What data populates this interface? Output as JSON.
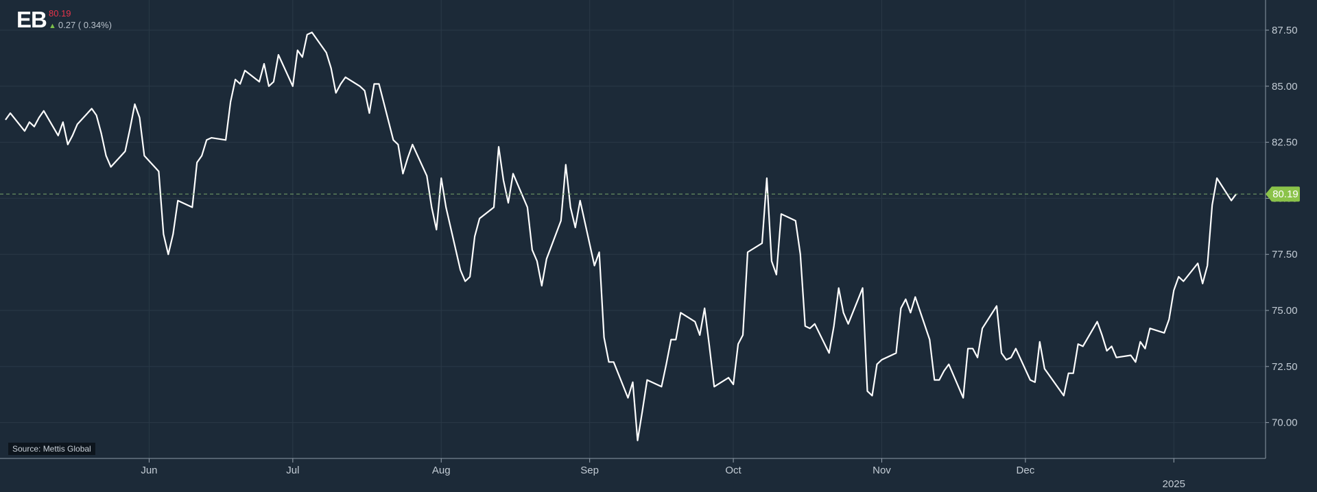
{
  "header": {
    "ticker": "EB",
    "price": "80.19",
    "change": "0.27 ( 0.34%)",
    "change_direction": "up"
  },
  "source_label": "Source: Mettis Global",
  "colors": {
    "background": "#1c2a38",
    "line": "#ffffff",
    "price_badge": "#8bc34a",
    "price_text_negative": "#e8344a",
    "change_up": "#7cbf4a"
  },
  "chart_data": {
    "type": "line",
    "title": "",
    "xlabel": "",
    "ylabel": "",
    "ylim": [
      68.4,
      88.6
    ],
    "yticks": [
      "70.00",
      "72.50",
      "75.00",
      "77.50",
      "80.00",
      "82.50",
      "85.00",
      "87.50"
    ],
    "x_tick_labels": [
      {
        "label": "Jun",
        "date": "2024-06-01"
      },
      {
        "label": "Jul",
        "date": "2024-07-01"
      },
      {
        "label": "Aug",
        "date": "2024-08-01"
      },
      {
        "label": "Sep",
        "date": "2024-09-01"
      },
      {
        "label": "Oct",
        "date": "2024-10-01"
      },
      {
        "label": "Nov",
        "date": "2024-11-01"
      },
      {
        "label": "Dec",
        "date": "2024-12-01"
      },
      {
        "label": "2025",
        "date": "2025-01-01"
      }
    ],
    "xlim": [
      "2024-05-02",
      "2025-01-17"
    ],
    "last_price": 80.19,
    "grid": true,
    "series": [
      {
        "values": [
          [
            "2024-05-02",
            83.5
          ],
          [
            "2024-05-03",
            83.8
          ],
          [
            "2024-05-06",
            83.0
          ],
          [
            "2024-05-07",
            83.4
          ],
          [
            "2024-05-08",
            83.2
          ],
          [
            "2024-05-09",
            83.6
          ],
          [
            "2024-05-10",
            83.9
          ],
          [
            "2024-05-13",
            82.8
          ],
          [
            "2024-05-14",
            83.4
          ],
          [
            "2024-05-15",
            82.4
          ],
          [
            "2024-05-16",
            82.8
          ],
          [
            "2024-05-17",
            83.3
          ],
          [
            "2024-05-20",
            84.0
          ],
          [
            "2024-05-21",
            83.7
          ],
          [
            "2024-05-22",
            82.9
          ],
          [
            "2024-05-23",
            81.9
          ],
          [
            "2024-05-24",
            81.4
          ],
          [
            "2024-05-27",
            82.1
          ],
          [
            "2024-05-28",
            83.1
          ],
          [
            "2024-05-29",
            84.2
          ],
          [
            "2024-05-30",
            83.6
          ],
          [
            "2024-05-31",
            81.9
          ],
          [
            "2024-06-03",
            81.2
          ],
          [
            "2024-06-04",
            78.4
          ],
          [
            "2024-06-05",
            77.5
          ],
          [
            "2024-06-06",
            78.4
          ],
          [
            "2024-06-07",
            79.9
          ],
          [
            "2024-06-10",
            79.6
          ],
          [
            "2024-06-11",
            81.6
          ],
          [
            "2024-06-12",
            81.9
          ],
          [
            "2024-06-13",
            82.6
          ],
          [
            "2024-06-14",
            82.7
          ],
          [
            "2024-06-17",
            82.6
          ],
          [
            "2024-06-18",
            84.3
          ],
          [
            "2024-06-19",
            85.3
          ],
          [
            "2024-06-20",
            85.1
          ],
          [
            "2024-06-21",
            85.7
          ],
          [
            "2024-06-24",
            85.2
          ],
          [
            "2024-06-25",
            86.0
          ],
          [
            "2024-06-26",
            85.0
          ],
          [
            "2024-06-27",
            85.2
          ],
          [
            "2024-06-28",
            86.4
          ],
          [
            "2024-07-01",
            85.0
          ],
          [
            "2024-07-02",
            86.6
          ],
          [
            "2024-07-03",
            86.3
          ],
          [
            "2024-07-04",
            87.3
          ],
          [
            "2024-07-05",
            87.4
          ],
          [
            "2024-07-08",
            86.5
          ],
          [
            "2024-07-09",
            85.8
          ],
          [
            "2024-07-10",
            84.7
          ],
          [
            "2024-07-11",
            85.1
          ],
          [
            "2024-07-12",
            85.4
          ],
          [
            "2024-07-15",
            85.0
          ],
          [
            "2024-07-16",
            84.8
          ],
          [
            "2024-07-17",
            83.8
          ],
          [
            "2024-07-18",
            85.1
          ],
          [
            "2024-07-19",
            85.1
          ],
          [
            "2024-07-22",
            82.6
          ],
          [
            "2024-07-23",
            82.4
          ],
          [
            "2024-07-24",
            81.1
          ],
          [
            "2024-07-25",
            81.8
          ],
          [
            "2024-07-26",
            82.4
          ],
          [
            "2024-07-29",
            81.0
          ],
          [
            "2024-07-30",
            79.6
          ],
          [
            "2024-07-31",
            78.6
          ],
          [
            "2024-08-01",
            80.9
          ],
          [
            "2024-08-02",
            79.6
          ],
          [
            "2024-08-05",
            76.8
          ],
          [
            "2024-08-06",
            76.3
          ],
          [
            "2024-08-07",
            76.5
          ],
          [
            "2024-08-08",
            78.3
          ],
          [
            "2024-08-09",
            79.1
          ],
          [
            "2024-08-12",
            79.6
          ],
          [
            "2024-08-13",
            82.3
          ],
          [
            "2024-08-14",
            80.8
          ],
          [
            "2024-08-15",
            79.8
          ],
          [
            "2024-08-16",
            81.1
          ],
          [
            "2024-08-19",
            79.6
          ],
          [
            "2024-08-20",
            77.7
          ],
          [
            "2024-08-21",
            77.2
          ],
          [
            "2024-08-22",
            76.1
          ],
          [
            "2024-08-23",
            77.3
          ],
          [
            "2024-08-26",
            79.0
          ],
          [
            "2024-08-27",
            81.5
          ],
          [
            "2024-08-28",
            79.6
          ],
          [
            "2024-08-29",
            78.7
          ],
          [
            "2024-08-30",
            79.9
          ],
          [
            "2024-09-02",
            77.0
          ],
          [
            "2024-09-03",
            77.6
          ],
          [
            "2024-09-04",
            73.8
          ],
          [
            "2024-09-05",
            72.7
          ],
          [
            "2024-09-06",
            72.7
          ],
          [
            "2024-09-09",
            71.1
          ],
          [
            "2024-09-10",
            71.8
          ],
          [
            "2024-09-11",
            69.2
          ],
          [
            "2024-09-12",
            70.5
          ],
          [
            "2024-09-13",
            71.9
          ],
          [
            "2024-09-16",
            71.6
          ],
          [
            "2024-09-17",
            72.6
          ],
          [
            "2024-09-18",
            73.7
          ],
          [
            "2024-09-19",
            73.7
          ],
          [
            "2024-09-20",
            74.9
          ],
          [
            "2024-09-23",
            74.5
          ],
          [
            "2024-09-24",
            73.9
          ],
          [
            "2024-09-25",
            75.1
          ],
          [
            "2024-09-26",
            73.4
          ],
          [
            "2024-09-27",
            71.6
          ],
          [
            "2024-09-30",
            72.0
          ],
          [
            "2024-10-01",
            71.7
          ],
          [
            "2024-10-02",
            73.5
          ],
          [
            "2024-10-03",
            73.9
          ],
          [
            "2024-10-04",
            77.6
          ],
          [
            "2024-10-07",
            78.0
          ],
          [
            "2024-10-08",
            80.9
          ],
          [
            "2024-10-09",
            77.2
          ],
          [
            "2024-10-10",
            76.6
          ],
          [
            "2024-10-11",
            79.3
          ],
          [
            "2024-10-14",
            79.0
          ],
          [
            "2024-10-15",
            77.5
          ],
          [
            "2024-10-16",
            74.3
          ],
          [
            "2024-10-17",
            74.2
          ],
          [
            "2024-10-18",
            74.4
          ],
          [
            "2024-10-21",
            73.1
          ],
          [
            "2024-10-22",
            74.3
          ],
          [
            "2024-10-23",
            76.0
          ],
          [
            "2024-10-24",
            74.9
          ],
          [
            "2024-10-25",
            74.4
          ],
          [
            "2024-10-28",
            76.0
          ],
          [
            "2024-10-29",
            71.4
          ],
          [
            "2024-10-30",
            71.2
          ],
          [
            "2024-10-31",
            72.6
          ],
          [
            "2024-11-01",
            72.8
          ],
          [
            "2024-11-04",
            73.1
          ],
          [
            "2024-11-05",
            75.1
          ],
          [
            "2024-11-06",
            75.5
          ],
          [
            "2024-11-07",
            74.9
          ],
          [
            "2024-11-08",
            75.6
          ],
          [
            "2024-11-11",
            73.7
          ],
          [
            "2024-11-12",
            71.9
          ],
          [
            "2024-11-13",
            71.9
          ],
          [
            "2024-11-14",
            72.3
          ],
          [
            "2024-11-15",
            72.6
          ],
          [
            "2024-11-18",
            71.1
          ],
          [
            "2024-11-19",
            73.3
          ],
          [
            "2024-11-20",
            73.3
          ],
          [
            "2024-11-21",
            72.9
          ],
          [
            "2024-11-22",
            74.2
          ],
          [
            "2024-11-25",
            75.2
          ],
          [
            "2024-11-26",
            73.1
          ],
          [
            "2024-11-27",
            72.8
          ],
          [
            "2024-11-28",
            72.9
          ],
          [
            "2024-11-29",
            73.3
          ],
          [
            "2024-12-02",
            71.9
          ],
          [
            "2024-12-03",
            71.8
          ],
          [
            "2024-12-04",
            73.6
          ],
          [
            "2024-12-05",
            72.4
          ],
          [
            "2024-12-06",
            72.1
          ],
          [
            "2024-12-09",
            71.2
          ],
          [
            "2024-12-10",
            72.2
          ],
          [
            "2024-12-11",
            72.2
          ],
          [
            "2024-12-12",
            73.5
          ],
          [
            "2024-12-13",
            73.4
          ],
          [
            "2024-12-16",
            74.5
          ],
          [
            "2024-12-17",
            73.9
          ],
          [
            "2024-12-18",
            73.2
          ],
          [
            "2024-12-19",
            73.4
          ],
          [
            "2024-12-20",
            72.9
          ],
          [
            "2024-12-23",
            73.0
          ],
          [
            "2024-12-24",
            72.7
          ],
          [
            "2024-12-25",
            73.6
          ],
          [
            "2024-12-26",
            73.3
          ],
          [
            "2024-12-27",
            74.2
          ],
          [
            "2024-12-30",
            74.0
          ],
          [
            "2024-12-31",
            74.6
          ],
          [
            "2025-01-01",
            75.9
          ],
          [
            "2025-01-02",
            76.5
          ],
          [
            "2025-01-03",
            76.3
          ],
          [
            "2025-01-06",
            77.1
          ],
          [
            "2025-01-07",
            76.2
          ],
          [
            "2025-01-08",
            77.0
          ],
          [
            "2025-01-09",
            79.7
          ],
          [
            "2025-01-10",
            80.9
          ],
          [
            "2025-01-13",
            79.9
          ],
          [
            "2025-01-14",
            80.19
          ]
        ]
      }
    ]
  }
}
